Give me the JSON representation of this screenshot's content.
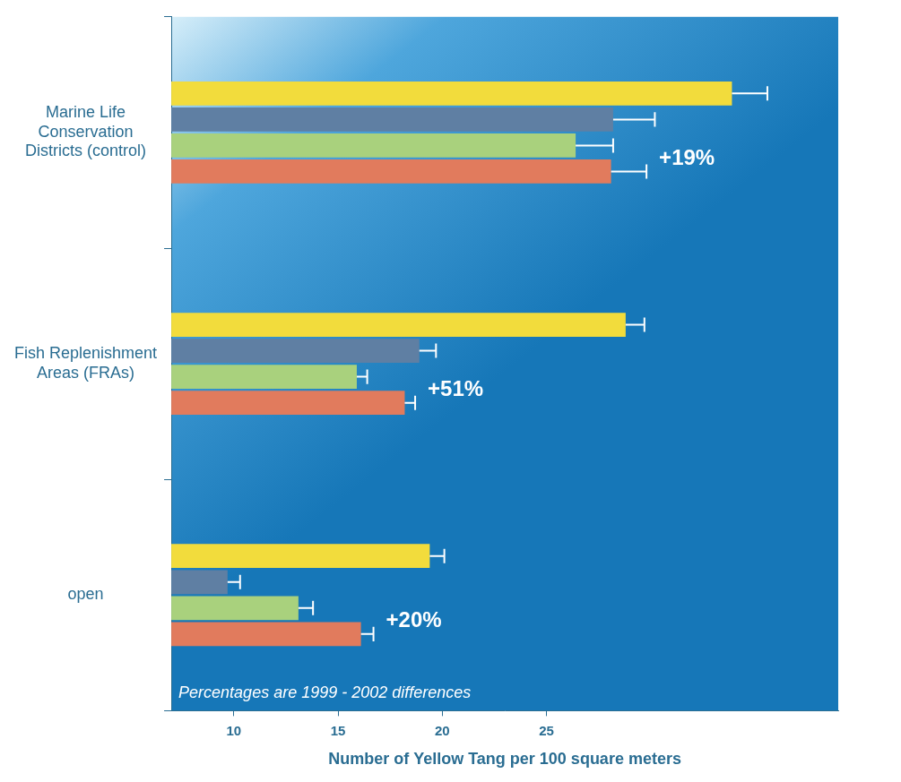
{
  "chart_data": {
    "type": "bar",
    "orientation": "horizontal",
    "categories": [
      "Marine Life Conservation Districts (control)",
      "Fish Replenishment Areas (FRAs)",
      "open"
    ],
    "series": [
      {
        "color": "#f2dc3c",
        "values": [
          33.9,
          28.8,
          19.4
        ],
        "errors": [
          1.7,
          0.9,
          0.7
        ]
      },
      {
        "color": "#5f7fa3",
        "values": [
          28.2,
          18.9,
          9.7
        ],
        "errors": [
          2.0,
          0.8,
          0.6
        ]
      },
      {
        "color": "#a9d17d",
        "values": [
          26.4,
          15.9,
          13.1
        ],
        "errors": [
          1.8,
          0.5,
          0.7
        ]
      },
      {
        "color": "#e17b5d",
        "values": [
          28.1,
          18.2,
          16.1
        ],
        "errors": [
          1.7,
          0.5,
          0.6
        ]
      }
    ],
    "x_label": "Number of Yellow Tang per 100 square meters",
    "xlim": [
      7,
      39
    ],
    "xticks": [
      10,
      15,
      20,
      25
    ],
    "grid": false,
    "annotations": [
      {
        "category": "Marine Life Conservation Districts (control)",
        "text": "+19%"
      },
      {
        "category": "Fish Replenishment Areas (FRAs)",
        "text": "+51%"
      },
      {
        "category": "open",
        "text": "+20%"
      }
    ],
    "note": "Percentages are 1999 - 2002 differences"
  }
}
